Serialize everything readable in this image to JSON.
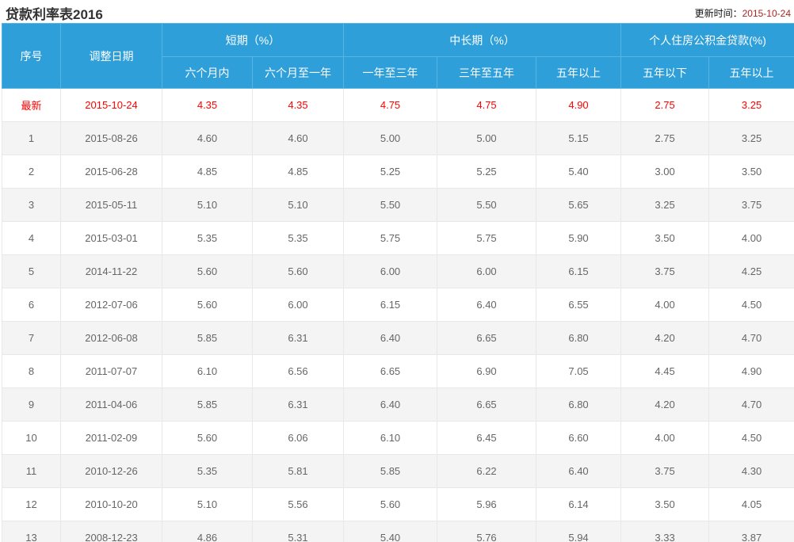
{
  "colors": {
    "header_bg": "#2e9fd9",
    "header_divider": "#57b4e3",
    "cell_border": "#e8e8e8",
    "row_alt_bg": "#f4f4f4",
    "body_text": "#666666",
    "latest_row_text": "#fe0000",
    "update_date_text": "#b22222"
  },
  "chart_data": {
    "type": "table",
    "title": "贷款利率表2016",
    "updated_label": "更新时间：",
    "updated": "2015-10-24",
    "column_groups": [
      {
        "label": "短期（%）",
        "span": 2
      },
      {
        "label": "中长期（%）",
        "span": 3
      },
      {
        "label": "个人住房公积金贷款(%)",
        "span": 2
      }
    ],
    "columns": [
      "序号",
      "调整日期",
      "六个月内",
      "六个月至一年",
      "一年至三年",
      "三年至五年",
      "五年以上",
      "五年以下",
      "五年以上"
    ],
    "highlight_row": 0,
    "rows": [
      [
        "最新",
        "2015-10-24",
        "4.35",
        "4.35",
        "4.75",
        "4.75",
        "4.90",
        "2.75",
        "3.25"
      ],
      [
        "1",
        "2015-08-26",
        "4.60",
        "4.60",
        "5.00",
        "5.00",
        "5.15",
        "2.75",
        "3.25"
      ],
      [
        "2",
        "2015-06-28",
        "4.85",
        "4.85",
        "5.25",
        "5.25",
        "5.40",
        "3.00",
        "3.50"
      ],
      [
        "3",
        "2015-05-11",
        "5.10",
        "5.10",
        "5.50",
        "5.50",
        "5.65",
        "3.25",
        "3.75"
      ],
      [
        "4",
        "2015-03-01",
        "5.35",
        "5.35",
        "5.75",
        "5.75",
        "5.90",
        "3.50",
        "4.00"
      ],
      [
        "5",
        "2014-11-22",
        "5.60",
        "5.60",
        "6.00",
        "6.00",
        "6.15",
        "3.75",
        "4.25"
      ],
      [
        "6",
        "2012-07-06",
        "5.60",
        "6.00",
        "6.15",
        "6.40",
        "6.55",
        "4.00",
        "4.50"
      ],
      [
        "7",
        "2012-06-08",
        "5.85",
        "6.31",
        "6.40",
        "6.65",
        "6.80",
        "4.20",
        "4.70"
      ],
      [
        "8",
        "2011-07-07",
        "6.10",
        "6.56",
        "6.65",
        "6.90",
        "7.05",
        "4.45",
        "4.90"
      ],
      [
        "9",
        "2011-04-06",
        "5.85",
        "6.31",
        "6.40",
        "6.65",
        "6.80",
        "4.20",
        "4.70"
      ],
      [
        "10",
        "2011-02-09",
        "5.60",
        "6.06",
        "6.10",
        "6.45",
        "6.60",
        "4.00",
        "4.50"
      ],
      [
        "11",
        "2010-12-26",
        "5.35",
        "5.81",
        "5.85",
        "6.22",
        "6.40",
        "3.75",
        "4.30"
      ],
      [
        "12",
        "2010-10-20",
        "5.10",
        "5.56",
        "5.60",
        "5.96",
        "6.14",
        "3.50",
        "4.05"
      ],
      [
        "13",
        "2008-12-23",
        "4.86",
        "5.31",
        "5.40",
        "5.76",
        "5.94",
        "3.33",
        "3.87"
      ]
    ]
  }
}
